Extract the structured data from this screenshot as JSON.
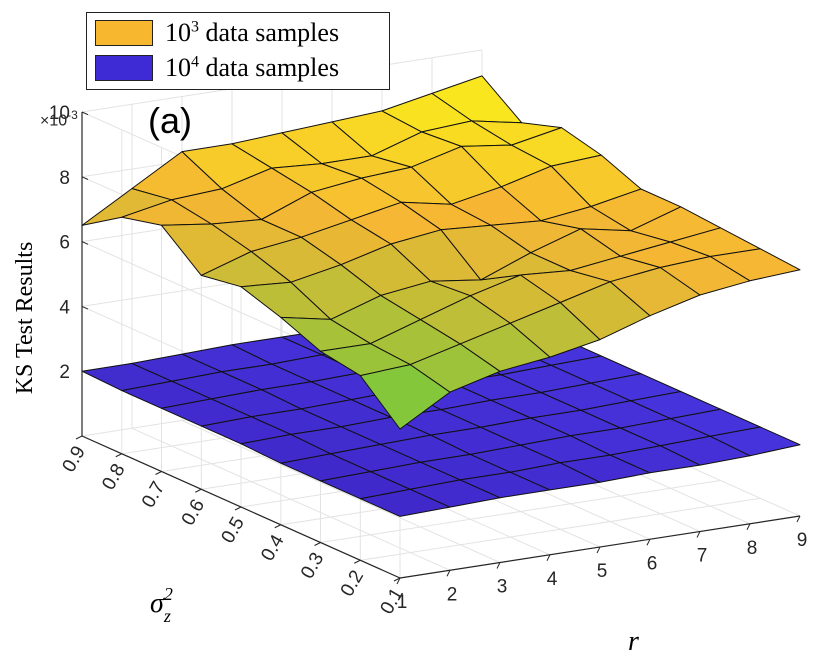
{
  "chart_data": {
    "type": "surface3d",
    "panel_label": "(a)",
    "zlabel": "KS Test Results",
    "zscale_text": "×10",
    "zscale_exp": "-3",
    "xlabel": "r",
    "ylabel_base": "σ",
    "ylabel_sup": "2",
    "ylabel_sub": "z",
    "x_ticks": [
      "1",
      "2",
      "3",
      "4",
      "5",
      "6",
      "7",
      "8",
      "9"
    ],
    "y_ticks": [
      "0.1",
      "0.2",
      "0.3",
      "0.4",
      "0.5",
      "0.6",
      "0.7",
      "0.8",
      "0.9"
    ],
    "z_ticks": [
      "2",
      "4",
      "6",
      "8",
      "10"
    ],
    "x_values": [
      1,
      2,
      3,
      4,
      5,
      6,
      7,
      8,
      9
    ],
    "y_values": [
      0.1,
      0.2,
      0.3,
      0.4,
      0.5,
      0.6,
      0.7,
      0.8,
      0.9
    ],
    "zlim": [
      0,
      10
    ],
    "z_multiplier": 0.001,
    "series": [
      {
        "name": "10^3 data samples",
        "legend_base": "10",
        "legend_exp": "3",
        "legend_rest": " data samples",
        "color": "#f7b82f",
        "values": [
          [
            4.6,
            5.5,
            5.9,
            6.1,
            6.4,
            6.9,
            7.3,
            7.5,
            7.6
          ],
          [
            5.7,
            5.8,
            6.2,
            6.6,
            7.0,
            7.4,
            7.6,
            7.7,
            7.7
          ],
          [
            5.9,
            5.9,
            6.4,
            6.9,
            7.3,
            7.2,
            7.4,
            7.6,
            7.8
          ],
          [
            6.4,
            6.1,
            6.6,
            6.8,
            6.6,
            7.2,
            7.7,
            7.4,
            7.9
          ],
          [
            6.8,
            6.7,
            7.0,
            7.4,
            7.6,
            7.5,
            7.4,
            7.6,
            7.9
          ],
          [
            6.6,
            7.1,
            7.3,
            7.6,
            7.9,
            7.6,
            7.9,
            8.3,
            8.4
          ],
          [
            7.6,
            7.4,
            7.3,
            7.9,
            8.1,
            8.2,
            8.6,
            8.4,
            8.7
          ],
          [
            7.3,
            7.6,
            7.7,
            8.1,
            8.0,
            8.0,
            8.5,
            8.6,
            8.3
          ],
          [
            6.5,
            7.4,
            8.3,
            8.3,
            8.4,
            8.5,
            8.6,
            8.9,
            9.2
          ]
        ]
      },
      {
        "name": "10^4 data samples",
        "legend_base": "10",
        "legend_exp": "4",
        "legend_rest": " data samples",
        "color": "#3e2bd6",
        "values": [
          [
            1.9,
            1.95,
            2.0,
            2.0,
            2.0,
            2.05,
            2.05,
            2.1,
            2.2
          ],
          [
            1.9,
            1.95,
            2.0,
            2.0,
            2.05,
            2.05,
            2.1,
            2.15,
            2.2
          ],
          [
            1.9,
            1.95,
            2.0,
            2.0,
            2.05,
            2.1,
            2.1,
            2.15,
            2.2
          ],
          [
            1.9,
            1.95,
            2.0,
            2.05,
            2.05,
            2.1,
            2.1,
            2.15,
            2.2
          ],
          [
            1.95,
            2.0,
            2.0,
            2.05,
            2.05,
            2.1,
            2.1,
            2.15,
            2.2
          ],
          [
            1.95,
            2.0,
            2.0,
            2.05,
            2.1,
            2.1,
            2.1,
            2.15,
            2.2
          ],
          [
            1.95,
            2.0,
            2.05,
            2.05,
            2.1,
            2.1,
            2.15,
            2.15,
            2.2
          ],
          [
            1.95,
            2.0,
            2.05,
            2.05,
            2.1,
            2.1,
            2.15,
            2.2,
            2.2
          ],
          [
            2.0,
            2.0,
            2.05,
            2.1,
            2.1,
            2.1,
            2.15,
            2.2,
            2.2
          ]
        ]
      }
    ]
  }
}
